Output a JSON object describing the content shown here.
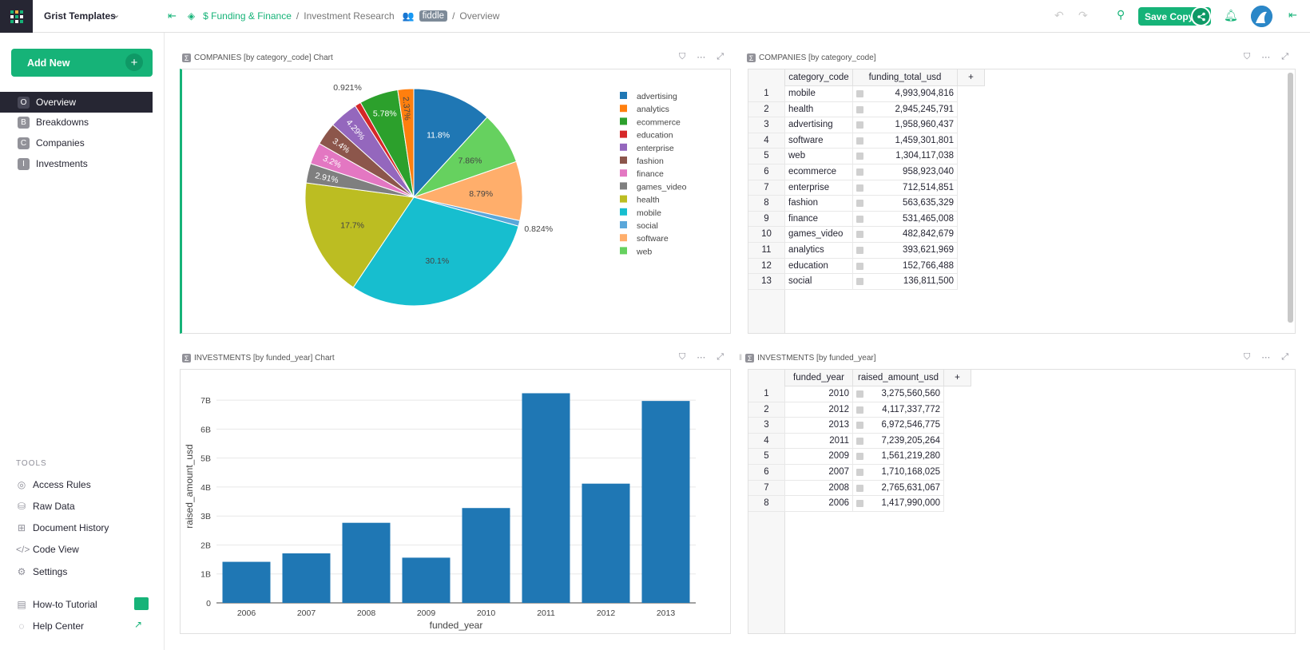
{
  "topbar": {
    "org": "Grist Templates",
    "crumb_1": "Funding & Finance",
    "crumb_2": "Investment Research",
    "crumb_badge": "fiddle",
    "crumb_3": "Overview",
    "save_copy": "Save Copy"
  },
  "sidebar": {
    "add_new": "Add New",
    "pages": [
      {
        "letter": "O",
        "label": "Overview"
      },
      {
        "letter": "B",
        "label": "Breakdowns"
      },
      {
        "letter": "C",
        "label": "Companies"
      },
      {
        "letter": "I",
        "label": "Investments"
      }
    ],
    "tools_title": "TOOLS",
    "tools": [
      "Access Rules",
      "Raw Data",
      "Document History",
      "Code View",
      "Settings"
    ],
    "bottom": [
      "How-to Tutorial",
      "Help Center"
    ]
  },
  "widgets": {
    "pie_title": "COMPANIES [by category_code] Chart",
    "companies_title": "COMPANIES [by category_code]",
    "bar_title": "INVESTMENTS [by funded_year] Chart",
    "investments_title": "INVESTMENTS [by funded_year]"
  },
  "companies_table": {
    "columns": [
      "category_code",
      "funding_total_usd",
      "+"
    ],
    "rows": [
      [
        "1",
        "mobile",
        "4,993,904,816"
      ],
      [
        "2",
        "health",
        "2,945,245,791"
      ],
      [
        "3",
        "advertising",
        "1,958,960,437"
      ],
      [
        "4",
        "software",
        "1,459,301,801"
      ],
      [
        "5",
        "web",
        "1,304,117,038"
      ],
      [
        "6",
        "ecommerce",
        "958,923,040"
      ],
      [
        "7",
        "enterprise",
        "712,514,851"
      ],
      [
        "8",
        "fashion",
        "563,635,329"
      ],
      [
        "9",
        "finance",
        "531,465,008"
      ],
      [
        "10",
        "games_video",
        "482,842,679"
      ],
      [
        "11",
        "analytics",
        "393,621,969"
      ],
      [
        "12",
        "education",
        "152,766,488"
      ],
      [
        "13",
        "social",
        "136,811,500"
      ]
    ]
  },
  "investments_table": {
    "columns": [
      "funded_year",
      "raised_amount_usd",
      "+"
    ],
    "rows": [
      [
        "1",
        "2010",
        "3,275,560,560"
      ],
      [
        "2",
        "2012",
        "4,117,337,772"
      ],
      [
        "3",
        "2013",
        "6,972,546,775"
      ],
      [
        "4",
        "2011",
        "7,239,205,264"
      ],
      [
        "5",
        "2009",
        "1,561,219,280"
      ],
      [
        "6",
        "2007",
        "1,710,168,025"
      ],
      [
        "7",
        "2008",
        "2,765,631,067"
      ],
      [
        "8",
        "2006",
        "1,417,990,000"
      ]
    ]
  },
  "chart_data": [
    {
      "type": "pie",
      "title": "",
      "legend_position": "right",
      "slices": [
        {
          "label": "advertising",
          "percent": 11.8,
          "value": 1958960437,
          "color": "#1f77b4"
        },
        {
          "label": "web",
          "percent": 7.86,
          "value": 1304117038,
          "color": "#66d15f"
        },
        {
          "label": "software",
          "percent": 8.79,
          "value": 1459301801,
          "color": "#ffae6b"
        },
        {
          "label": "social",
          "percent": 0.824,
          "value": 136811500,
          "color": "#5aa7da"
        },
        {
          "label": "mobile",
          "percent": 30.1,
          "value": 4993904816,
          "color": "#17becf"
        },
        {
          "label": "health",
          "percent": 17.7,
          "value": 2945245791,
          "color": "#bcbd22"
        },
        {
          "label": "games_video",
          "percent": 2.91,
          "value": 482842679,
          "color": "#7f7f7f"
        },
        {
          "label": "finance",
          "percent": 3.2,
          "value": 531465008,
          "color": "#e377c2"
        },
        {
          "label": "fashion",
          "percent": 3.4,
          "value": 563635329,
          "color": "#8c564b"
        },
        {
          "label": "enterprise",
          "percent": 4.29,
          "value": 712514851,
          "color": "#9467bd"
        },
        {
          "label": "education",
          "percent": 0.921,
          "value": 152766488,
          "color": "#d62728"
        },
        {
          "label": "ecommerce",
          "percent": 5.78,
          "value": 958923040,
          "color": "#2ca02c"
        },
        {
          "label": "analytics",
          "percent": 2.37,
          "value": 393621969,
          "color": "#ff7f0e"
        }
      ],
      "slice_labels": [
        "11.8%",
        "7.86%",
        "8.79%",
        "0.824%",
        "30.1%",
        "17.7%",
        "2.91%",
        "3.2%",
        "3.4%",
        "4.29%",
        "0.921%",
        "5.78%",
        "2.37%"
      ],
      "legend": [
        "advertising",
        "analytics",
        "ecommerce",
        "education",
        "enterprise",
        "fashion",
        "finance",
        "games_video",
        "health",
        "mobile",
        "social",
        "software",
        "web"
      ],
      "legend_colors": [
        "#1f77b4",
        "#ff7f0e",
        "#2ca02c",
        "#d62728",
        "#9467bd",
        "#8c564b",
        "#e377c2",
        "#7f7f7f",
        "#bcbd22",
        "#17becf",
        "#5aa7da",
        "#ffae6b",
        "#66d15f"
      ]
    },
    {
      "type": "bar",
      "title": "",
      "xlabel": "funded_year",
      "ylabel": "raised_amount_usd",
      "categories": [
        "2006",
        "2007",
        "2008",
        "2009",
        "2010",
        "2011",
        "2012",
        "2013"
      ],
      "values": [
        1417990000,
        1710168025,
        2765631067,
        1561219280,
        3275560560,
        7239205264,
        4117337772,
        6972546775
      ],
      "yticks": [
        "0",
        "1B",
        "2B",
        "3B",
        "4B",
        "5B",
        "6B",
        "7B"
      ],
      "ylim": [
        0,
        7500000000
      ],
      "color": "#1f77b4",
      "grid": true
    }
  ]
}
